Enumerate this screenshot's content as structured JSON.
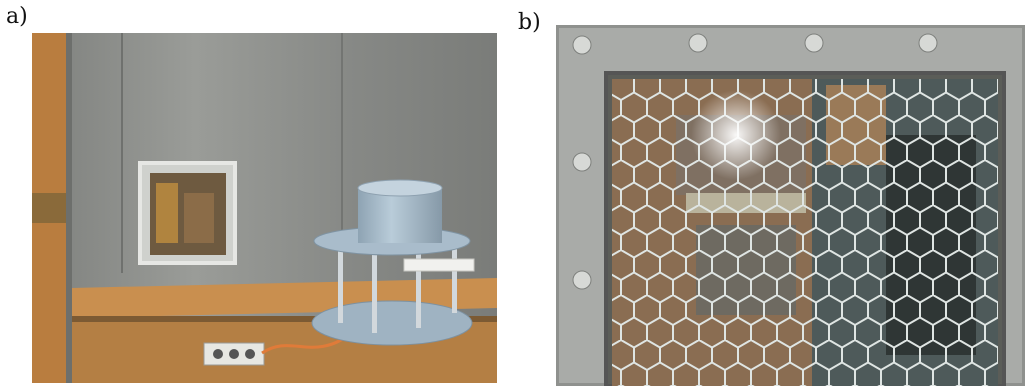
{
  "figure": {
    "panel_a_label": "a)",
    "panel_b_label": "b)"
  },
  "colors": {
    "wall_metal": "#8d8f8c",
    "wood": "#c98f4f",
    "fixture_blue": "#a9bccb",
    "mesh": "#d9dfdd",
    "frame": "#a9aba8"
  }
}
